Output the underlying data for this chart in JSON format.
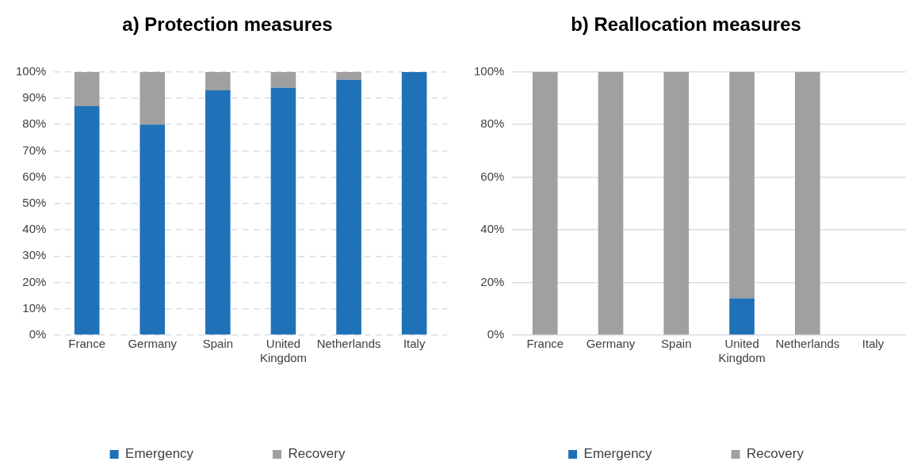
{
  "chart_data": [
    {
      "type": "bar",
      "title": "a) Protection measures",
      "stacked": true,
      "categories": [
        "France",
        "Germany",
        "Spain",
        "United Kingdom",
        "Netherlands",
        "Italy"
      ],
      "series": [
        {
          "name": "Emergency",
          "color": "#1f71b8",
          "values": [
            87,
            80,
            93,
            94,
            97,
            100
          ]
        },
        {
          "name": "Recovery",
          "color": "#a0a0a0",
          "values": [
            13,
            20,
            7,
            6,
            3,
            0
          ]
        }
      ],
      "ylim": [
        0,
        100
      ],
      "yticks": [
        {
          "value": 0,
          "label": "0%"
        },
        {
          "value": 10,
          "label": "10%"
        },
        {
          "value": 20,
          "label": "20%"
        },
        {
          "value": 30,
          "label": "30%"
        },
        {
          "value": 40,
          "label": "40%"
        },
        {
          "value": 50,
          "label": "50%"
        },
        {
          "value": 60,
          "label": "60%"
        },
        {
          "value": 70,
          "label": "70%"
        },
        {
          "value": 80,
          "label": "80%"
        },
        {
          "value": 90,
          "label": "90%"
        },
        {
          "value": 100,
          "label": "100%"
        }
      ],
      "grid": "y",
      "legend": "bottom"
    },
    {
      "type": "bar",
      "title": "b) Reallocation measures",
      "stacked": true,
      "categories": [
        "France",
        "Germany",
        "Spain",
        "United Kingdom",
        "Netherlands",
        "Italy"
      ],
      "series": [
        {
          "name": "Emergency",
          "color": "#1f71b8",
          "values": [
            0,
            0,
            0,
            14,
            0,
            null
          ]
        },
        {
          "name": "Recovery",
          "color": "#a0a0a0",
          "values": [
            100,
            100,
            100,
            86,
            100,
            null
          ]
        }
      ],
      "ylim": [
        0,
        100
      ],
      "yticks": [
        {
          "value": 0,
          "label": "0%"
        },
        {
          "value": 20,
          "label": "20%"
        },
        {
          "value": 40,
          "label": "40%"
        },
        {
          "value": 60,
          "label": "60%"
        },
        {
          "value": 80,
          "label": "80%"
        },
        {
          "value": 100,
          "label": "100%"
        }
      ],
      "grid": "y",
      "legend": "bottom"
    }
  ]
}
